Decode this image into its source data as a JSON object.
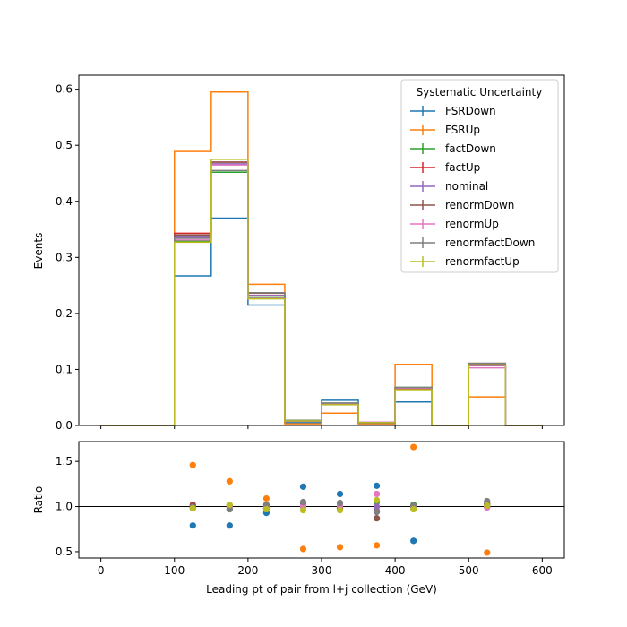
{
  "chart_data": [
    {
      "type": "step",
      "panel": "main",
      "xlabel": "",
      "ylabel": "Events",
      "xlim": [
        -30,
        630
      ],
      "ylim": [
        0,
        0.625
      ],
      "bin_edges": [
        0,
        50,
        100,
        150,
        200,
        250,
        300,
        350,
        400,
        450,
        500,
        550,
        600
      ],
      "x_ticks": [
        0,
        100,
        200,
        300,
        400,
        500,
        600
      ],
      "y_ticks": [
        0.0,
        0.1,
        0.2,
        0.3,
        0.4,
        0.5,
        0.6
      ],
      "y_tick_labels": [
        "0.0",
        "0.1",
        "0.2",
        "0.3",
        "0.4",
        "0.5",
        "0.6"
      ],
      "legend": {
        "title": "Systematic Uncertainty",
        "placement": "upper right"
      },
      "series": [
        {
          "name": "FSRDown",
          "color": "#1f77b4",
          "values": [
            0,
            0,
            0.267,
            0.37,
            0.215,
            0.005,
            0.045,
            0.005,
            0.042,
            0,
            0.109,
            0
          ]
        },
        {
          "name": "FSRUp",
          "color": "#ff7f0e",
          "values": [
            0,
            0,
            0.489,
            0.595,
            0.252,
            0.003,
            0.022,
            0.003,
            0.109,
            0,
            0.051,
            0
          ]
        },
        {
          "name": "factDown",
          "color": "#2ca02c",
          "values": [
            0,
            0,
            0.329,
            0.452,
            0.228,
            0.009,
            0.04,
            0.006,
            0.068,
            0,
            0.109,
            0
          ]
        },
        {
          "name": "factUp",
          "color": "#d62728",
          "values": [
            0,
            0,
            0.343,
            0.47,
            0.232,
            0.008,
            0.038,
            0.005,
            0.066,
            0,
            0.107,
            0
          ]
        },
        {
          "name": "nominal",
          "color": "#9467bd",
          "values": [
            0,
            0,
            0.336,
            0.467,
            0.232,
            0.008,
            0.039,
            0.005,
            0.067,
            0,
            0.107,
            0
          ]
        },
        {
          "name": "renormDown",
          "color": "#8c564b",
          "values": [
            0,
            0,
            0.34,
            0.47,
            0.236,
            0.008,
            0.038,
            0.004,
            0.067,
            0,
            0.11,
            0
          ]
        },
        {
          "name": "renormUp",
          "color": "#e377c2",
          "values": [
            0,
            0,
            0.331,
            0.465,
            0.227,
            0.008,
            0.039,
            0.006,
            0.067,
            0,
            0.103,
            0
          ]
        },
        {
          "name": "renormfactDown",
          "color": "#7f7f7f",
          "values": [
            0,
            0,
            0.334,
            0.455,
            0.237,
            0.009,
            0.04,
            0.005,
            0.068,
            0,
            0.111,
            0
          ]
        },
        {
          "name": "renormfactUp",
          "color": "#bcbd22",
          "values": [
            0,
            0,
            0.327,
            0.475,
            0.226,
            0.008,
            0.037,
            0.005,
            0.064,
            0,
            0.108,
            0
          ]
        }
      ]
    },
    {
      "type": "scatter",
      "panel": "ratio",
      "xlabel": "Leading pt of pair from l+j collection (GeV)",
      "ylabel": "Ratio",
      "xlim": [
        -30,
        630
      ],
      "ylim": [
        0.43,
        1.72
      ],
      "reference_line": 1.0,
      "x_ticks": [
        0,
        100,
        200,
        300,
        400,
        500,
        600
      ],
      "x_tick_labels": [
        "0",
        "100",
        "200",
        "300",
        "400",
        "500",
        "600"
      ],
      "y_ticks": [
        0.5,
        1.0,
        1.5
      ],
      "y_tick_labels": [
        "0.5",
        "1.0",
        "1.5"
      ],
      "x": [
        125,
        175,
        225,
        275,
        325,
        375,
        425,
        525
      ],
      "series": [
        {
          "name": "FSRDown",
          "color": "#1f77b4",
          "values": [
            0.79,
            0.79,
            0.93,
            1.22,
            1.14,
            1.23,
            0.62,
            1.02
          ]
        },
        {
          "name": "FSRUp",
          "color": "#ff7f0e",
          "values": [
            1.46,
            1.28,
            1.09,
            0.53,
            0.55,
            0.57,
            1.66,
            0.49
          ]
        },
        {
          "name": "factDown",
          "color": "#2ca02c",
          "values": [
            0.98,
            0.97,
            0.98,
            1.04,
            1.0,
            1.05,
            1.02,
            1.03
          ]
        },
        {
          "name": "factUp",
          "color": "#d62728",
          "values": [
            1.02,
            1.01,
            1.0,
            1.0,
            0.98,
            0.95,
            0.99,
            1.0
          ]
        },
        {
          "name": "nominal",
          "color": "#9467bd",
          "values": [
            1.0,
            1.0,
            1.0,
            1.0,
            1.0,
            1.0,
            1.0,
            1.0
          ]
        },
        {
          "name": "renormDown",
          "color": "#8c564b",
          "values": [
            1.01,
            1.0,
            1.02,
            1.03,
            0.98,
            0.87,
            1.0,
            1.03
          ]
        },
        {
          "name": "renormUp",
          "color": "#e377c2",
          "values": [
            0.99,
            0.99,
            0.98,
            1.01,
            1.01,
            1.14,
            1.0,
            0.99
          ]
        },
        {
          "name": "renormfactDown",
          "color": "#7f7f7f",
          "values": [
            0.99,
            0.97,
            1.02,
            1.05,
            1.04,
            0.94,
            1.01,
            1.06
          ]
        },
        {
          "name": "renormfactUp",
          "color": "#bcbd22",
          "values": [
            0.98,
            1.02,
            0.97,
            0.96,
            0.96,
            1.07,
            0.97,
            1.01
          ]
        }
      ]
    }
  ]
}
